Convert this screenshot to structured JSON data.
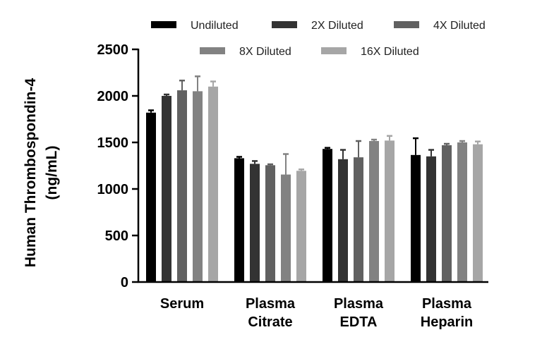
{
  "chart_data": {
    "type": "bar",
    "ylabel_lines": [
      "Human Thrombospondin-4",
      "(ng/mL)"
    ],
    "ylim": [
      0,
      2500
    ],
    "yticks": [
      0,
      500,
      1000,
      1500,
      2000,
      2500
    ],
    "categories": [
      [
        "Serum"
      ],
      [
        "Plasma",
        "Citrate"
      ],
      [
        "Plasma",
        "EDTA"
      ],
      [
        "Plasma",
        "Heparin"
      ]
    ],
    "series": [
      {
        "name": "Undiluted",
        "color": "#000000",
        "values": [
          1820,
          1330,
          1430,
          1365
        ],
        "errors": [
          25,
          15,
          12,
          180
        ]
      },
      {
        "name": "2X Diluted",
        "color": "#333333",
        "values": [
          2000,
          1270,
          1320,
          1350
        ],
        "errors": [
          15,
          30,
          100,
          70
        ]
      },
      {
        "name": "4X Diluted",
        "color": "#616161",
        "values": [
          2060,
          1255,
          1340,
          1470
        ],
        "errors": [
          105,
          10,
          175,
          15
        ]
      },
      {
        "name": "8X Diluted",
        "color": "#828282",
        "values": [
          2050,
          1155,
          1515,
          1500
        ],
        "errors": [
          160,
          220,
          15,
          15
        ]
      },
      {
        "name": "16X Diluted",
        "color": "#a6a6a6",
        "values": [
          2100,
          1195,
          1520,
          1480
        ],
        "errors": [
          55,
          15,
          50,
          30
        ]
      }
    ],
    "legend_position": "top"
  }
}
